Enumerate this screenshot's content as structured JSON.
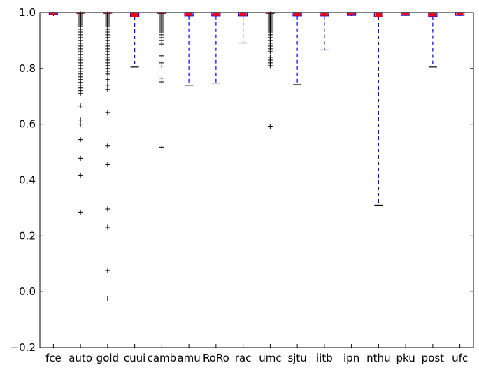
{
  "chart_data": {
    "type": "boxplot",
    "title": "",
    "xlabel": "",
    "ylabel": "",
    "ylim": [
      -0.2,
      1.0
    ],
    "yticks": [
      "−0.2",
      "0.0",
      "0.2",
      "0.4",
      "0.6",
      "0.8",
      "1.0"
    ],
    "grid": false,
    "legend": "none",
    "colors": {
      "box": "#0000ff",
      "whisker": "#0000ff",
      "median": "#ff0000",
      "cap": "#000000",
      "flier": "#000000"
    },
    "categories": [
      "fce",
      "auto",
      "gold",
      "cuui",
      "camb",
      "amu",
      "RoRo",
      "rac",
      "umc",
      "sjtu",
      "iitb",
      "ipn",
      "nthu",
      "pku",
      "post",
      "ufc"
    ],
    "boxes": [
      {
        "label": "fce",
        "q1": 0.994,
        "median": 0.998,
        "q3": 1.0,
        "whislo": 0.994,
        "whishi": 1.0,
        "fliers": []
      },
      {
        "label": "auto",
        "q1": 0.999,
        "median": 1.0,
        "q3": 1.0,
        "whislo": 0.998,
        "whishi": 1.0,
        "fliers": [
          0.995,
          0.99,
          0.985,
          0.98,
          0.975,
          0.97,
          0.965,
          0.96,
          0.955,
          0.95,
          0.94,
          0.93,
          0.92,
          0.91,
          0.9,
          0.89,
          0.88,
          0.87,
          0.86,
          0.85,
          0.84,
          0.83,
          0.82,
          0.81,
          0.8,
          0.79,
          0.78,
          0.77,
          0.76,
          0.75,
          0.74,
          0.73,
          0.72,
          0.71,
          0.665,
          0.615,
          0.6,
          0.545,
          0.478,
          0.418,
          0.285
        ]
      },
      {
        "label": "gold",
        "q1": 0.999,
        "median": 1.0,
        "q3": 1.0,
        "whislo": 0.998,
        "whishi": 1.0,
        "fliers": [
          0.995,
          0.99,
          0.985,
          0.98,
          0.975,
          0.97,
          0.965,
          0.96,
          0.955,
          0.95,
          0.94,
          0.93,
          0.92,
          0.91,
          0.9,
          0.89,
          0.88,
          0.87,
          0.86,
          0.85,
          0.84,
          0.83,
          0.82,
          0.81,
          0.8,
          0.79,
          0.78,
          0.76,
          0.74,
          0.725,
          0.642,
          0.522,
          0.455,
          0.296,
          0.231,
          0.076,
          -0.026
        ]
      },
      {
        "label": "cuui",
        "q1": 0.985,
        "median": 0.999,
        "q3": 1.0,
        "whislo": 0.805,
        "whishi": 1.0,
        "fliers": []
      },
      {
        "label": "camb",
        "q1": 0.998,
        "median": 1.0,
        "q3": 1.0,
        "whislo": 0.997,
        "whishi": 1.0,
        "fliers": [
          0.995,
          0.99,
          0.985,
          0.98,
          0.975,
          0.97,
          0.965,
          0.96,
          0.955,
          0.95,
          0.945,
          0.94,
          0.935,
          0.93,
          0.92,
          0.91,
          0.9,
          0.89,
          0.885,
          0.845,
          0.82,
          0.808,
          0.765,
          0.752,
          0.518
        ]
      },
      {
        "label": "amu",
        "q1": 0.988,
        "median": 0.999,
        "q3": 1.0,
        "whislo": 0.74,
        "whishi": 1.0,
        "fliers": []
      },
      {
        "label": "RoRo",
        "q1": 0.988,
        "median": 0.999,
        "q3": 1.0,
        "whislo": 0.748,
        "whishi": 1.0,
        "fliers": []
      },
      {
        "label": "rac",
        "q1": 0.988,
        "median": 0.999,
        "q3": 1.0,
        "whislo": 0.891,
        "whishi": 1.0,
        "fliers": []
      },
      {
        "label": "umc",
        "q1": 0.998,
        "median": 1.0,
        "q3": 1.0,
        "whislo": 0.997,
        "whishi": 1.0,
        "fliers": [
          0.995,
          0.99,
          0.985,
          0.98,
          0.975,
          0.97,
          0.965,
          0.96,
          0.955,
          0.95,
          0.945,
          0.94,
          0.935,
          0.93,
          0.92,
          0.91,
          0.9,
          0.89,
          0.88,
          0.87,
          0.86,
          0.84,
          0.83,
          0.82,
          0.81,
          0.593
        ]
      },
      {
        "label": "sjtu",
        "q1": 0.988,
        "median": 0.999,
        "q3": 1.0,
        "whislo": 0.742,
        "whishi": 1.0,
        "fliers": []
      },
      {
        "label": "iitb",
        "q1": 0.988,
        "median": 0.999,
        "q3": 1.0,
        "whislo": 0.866,
        "whishi": 1.0,
        "fliers": []
      },
      {
        "label": "ipn",
        "q1": 0.99,
        "median": 0.999,
        "q3": 1.0,
        "whislo": 0.99,
        "whishi": 1.0,
        "fliers": []
      },
      {
        "label": "nthu",
        "q1": 0.985,
        "median": 0.999,
        "q3": 1.0,
        "whislo": 0.31,
        "whishi": 1.0,
        "fliers": []
      },
      {
        "label": "pku",
        "q1": 0.99,
        "median": 0.999,
        "q3": 1.0,
        "whislo": 0.99,
        "whishi": 1.0,
        "fliers": []
      },
      {
        "label": "post",
        "q1": 0.986,
        "median": 0.999,
        "q3": 1.0,
        "whislo": 0.805,
        "whishi": 1.0,
        "fliers": []
      },
      {
        "label": "ufc",
        "q1": 0.99,
        "median": 0.999,
        "q3": 1.0,
        "whislo": 0.99,
        "whishi": 1.0,
        "fliers": []
      }
    ]
  }
}
